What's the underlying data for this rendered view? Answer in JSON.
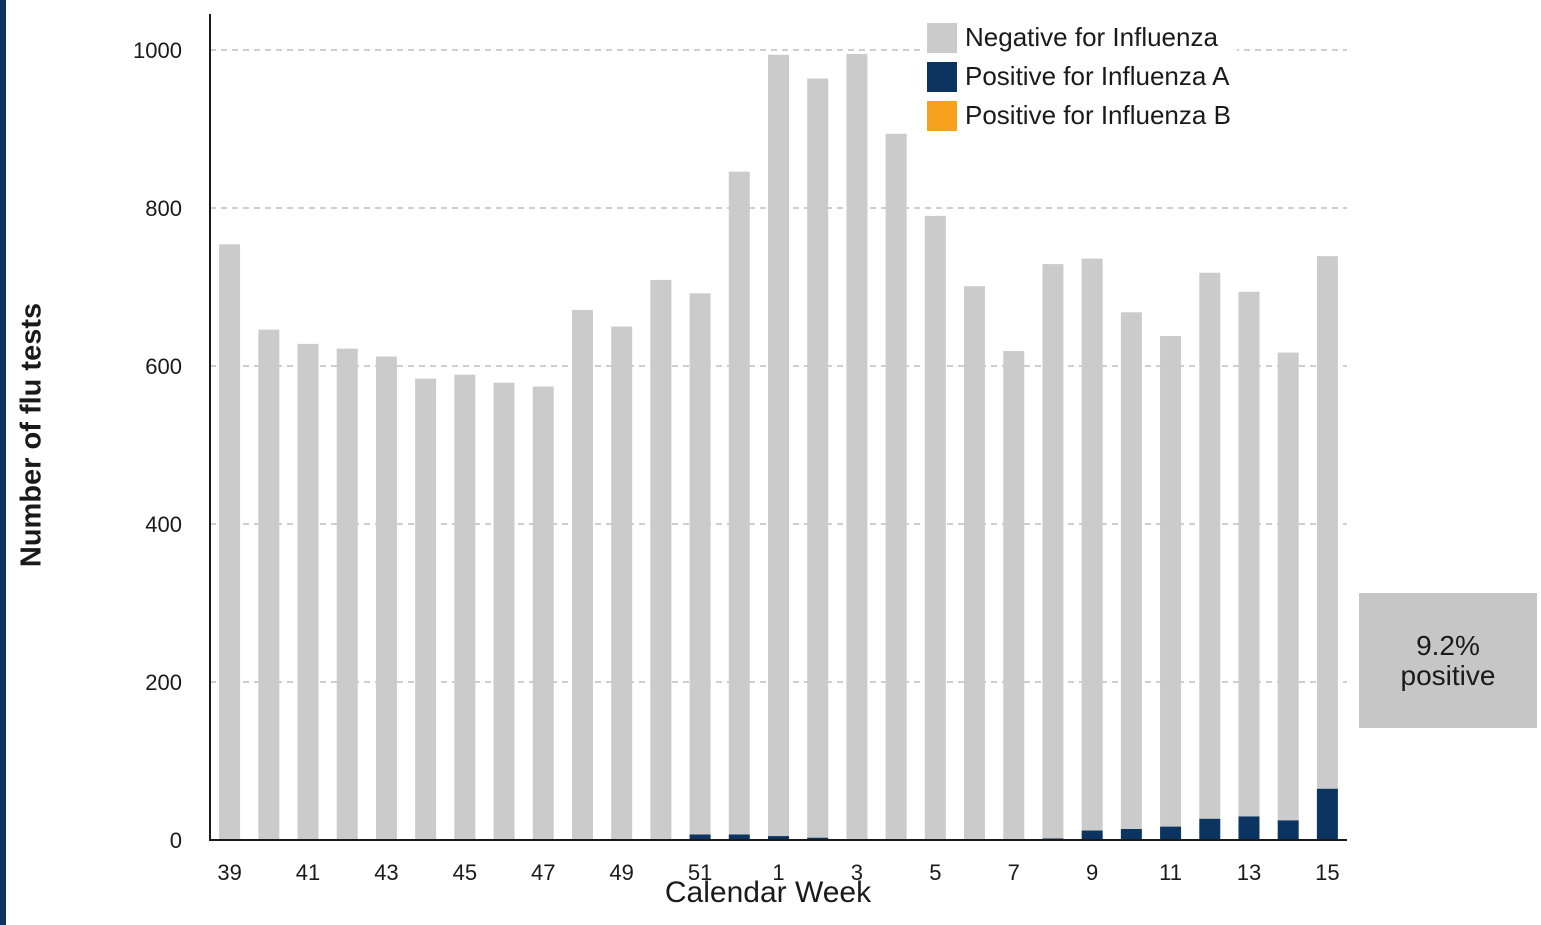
{
  "chart_data": {
    "type": "bar",
    "stacked": true,
    "xlabel": "Calendar Week",
    "ylabel": "Number of flu tests",
    "ylim": [
      0,
      1000
    ],
    "yticks": [
      0,
      200,
      400,
      600,
      800,
      1000
    ],
    "grid": "horizontal dashed",
    "legend_position": "top-right",
    "categories": [
      "39",
      "40",
      "41",
      "42",
      "43",
      "44",
      "45",
      "46",
      "47",
      "48",
      "49",
      "50",
      "51",
      "52",
      "1",
      "2",
      "3",
      "4",
      "5",
      "6",
      "7",
      "8",
      "9",
      "10",
      "11",
      "12",
      "13",
      "14",
      "15"
    ],
    "x_tick_labels": [
      "39",
      "41",
      "43",
      "45",
      "47",
      "49",
      "51",
      "1",
      "3",
      "5",
      "7",
      "9",
      "11",
      "13",
      "15"
    ],
    "series": [
      {
        "name": "Positive for Influenza A",
        "color": "#0b3560",
        "values": [
          0,
          0,
          1,
          1,
          1,
          1,
          0,
          0,
          0,
          0,
          0,
          0,
          7,
          7,
          5,
          3,
          0,
          0,
          0,
          0,
          0,
          2,
          12,
          14,
          17,
          27,
          30,
          25,
          65
        ]
      },
      {
        "name": "Positive for Influenza B",
        "color": "#f8a11f",
        "values": [
          0,
          0,
          0,
          0,
          0,
          0,
          0,
          0,
          0,
          0,
          0,
          0,
          0,
          0,
          0,
          0,
          0,
          0,
          0,
          0,
          0,
          0,
          0,
          0,
          0,
          0,
          0,
          0,
          0
        ]
      },
      {
        "name": "Negative for Influenza",
        "color": "#cbcbcb",
        "values": [
          754,
          646,
          627,
          621,
          611,
          583,
          589,
          579,
          574,
          671,
          650,
          709,
          685,
          839,
          989,
          961,
          995,
          894,
          790,
          701,
          619,
          727,
          724,
          654,
          621,
          691,
          664,
          592,
          674
        ]
      }
    ],
    "annotation": {
      "line1": "9.2%",
      "line2": "positive"
    }
  },
  "legend": [
    {
      "label": "Negative for Influenza",
      "color": "#cbcbcb"
    },
    {
      "label": "Positive for Influenza A",
      "color": "#0b3560"
    },
    {
      "label": "Positive for Influenza B",
      "color": "#f8a11f"
    }
  ]
}
